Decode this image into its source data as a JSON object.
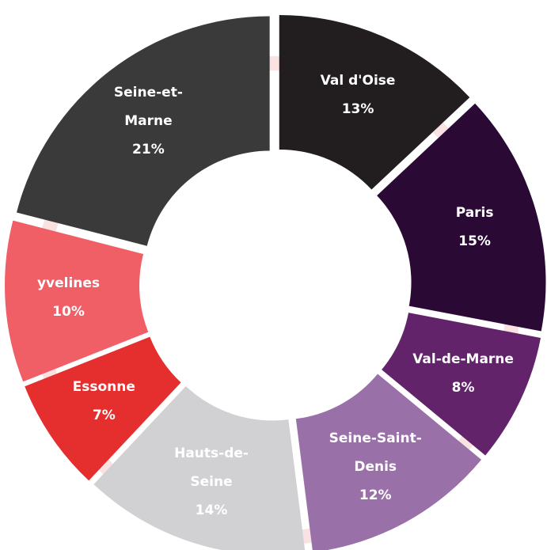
{
  "chart_data": {
    "type": "donut",
    "categories": [
      "Val d'Oise",
      "Paris",
      "Val-de-Marne",
      "Seine-Saint-Denis",
      "Hauts-de-Seine",
      "Essonne",
      "yvelines",
      "Seine-et-Marne"
    ],
    "values": [
      13,
      15,
      8,
      12,
      14,
      7,
      10,
      21
    ],
    "value_labels": [
      "13%",
      "15%",
      "8%",
      "12%",
      "14%",
      "7%",
      "10%",
      "21%"
    ],
    "colors": [
      "#221e1f",
      "#2a0a35",
      "#62236b",
      "#9a70a8",
      "#d1d1d3",
      "#e52e2e",
      "#f05f66",
      "#3a3a3b"
    ]
  }
}
